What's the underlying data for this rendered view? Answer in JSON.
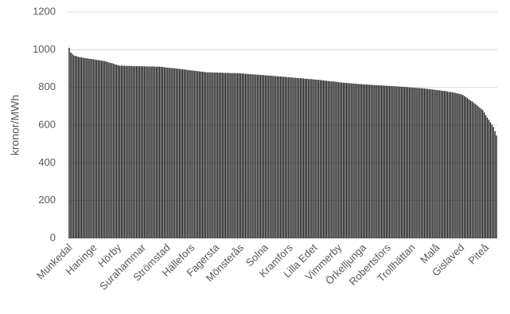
{
  "chart_data": {
    "type": "bar",
    "y_label": "kronor/MWh",
    "categories": [
      "Munkedal",
      null,
      null,
      null,
      null,
      null,
      null,
      null,
      null,
      null,
      null,
      null,
      null,
      null,
      null,
      null,
      "Haninge",
      null,
      null,
      null,
      null,
      null,
      null,
      null,
      null,
      null,
      null,
      null,
      null,
      null,
      null,
      null,
      "Hörby",
      null,
      null,
      null,
      null,
      null,
      null,
      null,
      null,
      null,
      null,
      null,
      null,
      null,
      null,
      null,
      "Surahammar",
      null,
      null,
      null,
      null,
      null,
      null,
      null,
      null,
      null,
      null,
      null,
      null,
      null,
      null,
      null,
      "Strömstad",
      null,
      null,
      null,
      null,
      null,
      null,
      null,
      null,
      null,
      null,
      null,
      null,
      null,
      null,
      null,
      "Hällefors",
      null,
      null,
      null,
      null,
      null,
      null,
      null,
      null,
      null,
      null,
      null,
      null,
      null,
      null,
      null,
      "Fagersta",
      null,
      null,
      null,
      null,
      null,
      null,
      null,
      null,
      null,
      null,
      null,
      null,
      null,
      null,
      null,
      "Mönsterås",
      null,
      null,
      null,
      null,
      null,
      null,
      null,
      null,
      null,
      null,
      null,
      null,
      null,
      null,
      null,
      "Solna",
      null,
      null,
      null,
      null,
      null,
      null,
      null,
      null,
      null,
      null,
      null,
      null,
      null,
      null,
      null,
      "Kramfors",
      null,
      null,
      null,
      null,
      null,
      null,
      null,
      null,
      null,
      null,
      null,
      null,
      null,
      null,
      null,
      "Lilla Edet",
      null,
      null,
      null,
      null,
      null,
      null,
      null,
      null,
      null,
      null,
      null,
      null,
      null,
      null,
      null,
      "Vimmerby",
      null,
      null,
      null,
      null,
      null,
      null,
      null,
      null,
      null,
      null,
      null,
      null,
      null,
      null,
      null,
      "Örkelljunga",
      null,
      null,
      null,
      null,
      null,
      null,
      null,
      null,
      null,
      null,
      null,
      null,
      null,
      null,
      null,
      "Robertsfors",
      null,
      null,
      null,
      null,
      null,
      null,
      null,
      null,
      null,
      null,
      null,
      null,
      null,
      null,
      null,
      "Trollhättan",
      null,
      null,
      null,
      null,
      null,
      null,
      null,
      null,
      null,
      null,
      null,
      null,
      null,
      null,
      null,
      "Malå",
      null,
      null,
      null,
      null,
      null,
      null,
      null,
      null,
      null,
      null,
      null,
      null,
      null,
      null,
      null,
      "Gislaved",
      null,
      null,
      null,
      null,
      null,
      null,
      null,
      null,
      null,
      null,
      null,
      null,
      null,
      null,
      null,
      "Piteå",
      null,
      null,
      null,
      null,
      null,
      null,
      null
    ],
    "values": [
      1010,
      985,
      978,
      970,
      967,
      965,
      962,
      960,
      959,
      957,
      956,
      955,
      954,
      952,
      951,
      950,
      949,
      947,
      946,
      945,
      944,
      942,
      941,
      940,
      938,
      935,
      932,
      930,
      928,
      925,
      922,
      920,
      918,
      915,
      915,
      915,
      915,
      914,
      914,
      914,
      914,
      913,
      913,
      913,
      913,
      912,
      912,
      912,
      912,
      912,
      911,
      911,
      911,
      911,
      911,
      911,
      910,
      910,
      910,
      910,
      909,
      908,
      907,
      906,
      905,
      904,
      903,
      903,
      902,
      901,
      900,
      899,
      898,
      897,
      896,
      895,
      894,
      893,
      892,
      891,
      890,
      889,
      888,
      887,
      886,
      885,
      884,
      883,
      882,
      881,
      880,
      880,
      880,
      879,
      879,
      879,
      879,
      878,
      878,
      878,
      878,
      877,
      877,
      877,
      877,
      876,
      876,
      876,
      876,
      875,
      875,
      875,
      874,
      874,
      873,
      872,
      872,
      871,
      870,
      870,
      869,
      869,
      868,
      867,
      867,
      866,
      866,
      865,
      864,
      864,
      863,
      862,
      862,
      861,
      860,
      860,
      859,
      858,
      858,
      857,
      856,
      856,
      855,
      854,
      854,
      853,
      852,
      851,
      851,
      850,
      849,
      849,
      848,
      847,
      846,
      846,
      845,
      844,
      844,
      843,
      842,
      841,
      841,
      840,
      839,
      838,
      837,
      836,
      835,
      834,
      833,
      832,
      832,
      831,
      830,
      829,
      828,
      827,
      826,
      825,
      824,
      824,
      823,
      822,
      822,
      821,
      820,
      820,
      819,
      818,
      818,
      817,
      816,
      816,
      815,
      815,
      814,
      814,
      813,
      813,
      812,
      812,
      811,
      811,
      810,
      810,
      809,
      809,
      808,
      808,
      807,
      807,
      806,
      806,
      805,
      805,
      804,
      804,
      803,
      802,
      802,
      801,
      800,
      800,
      799,
      799,
      798,
      797,
      797,
      796,
      796,
      795,
      794,
      793,
      792,
      791,
      790,
      789,
      788,
      787,
      786,
      785,
      784,
      783,
      782,
      781,
      780,
      778,
      776,
      776,
      774,
      773,
      771,
      769,
      767,
      765,
      763,
      760,
      754,
      749,
      743,
      737,
      731,
      726,
      720,
      713,
      707,
      700,
      693,
      687,
      680,
      667,
      653,
      640,
      628,
      615,
      603,
      590,
      568,
      545
    ],
    "color": "#1a1a1a",
    "ylim": [
      0,
      1200
    ],
    "yticks": [
      0,
      200,
      400,
      600,
      800,
      1000,
      1200
    ],
    "grid": true
  }
}
